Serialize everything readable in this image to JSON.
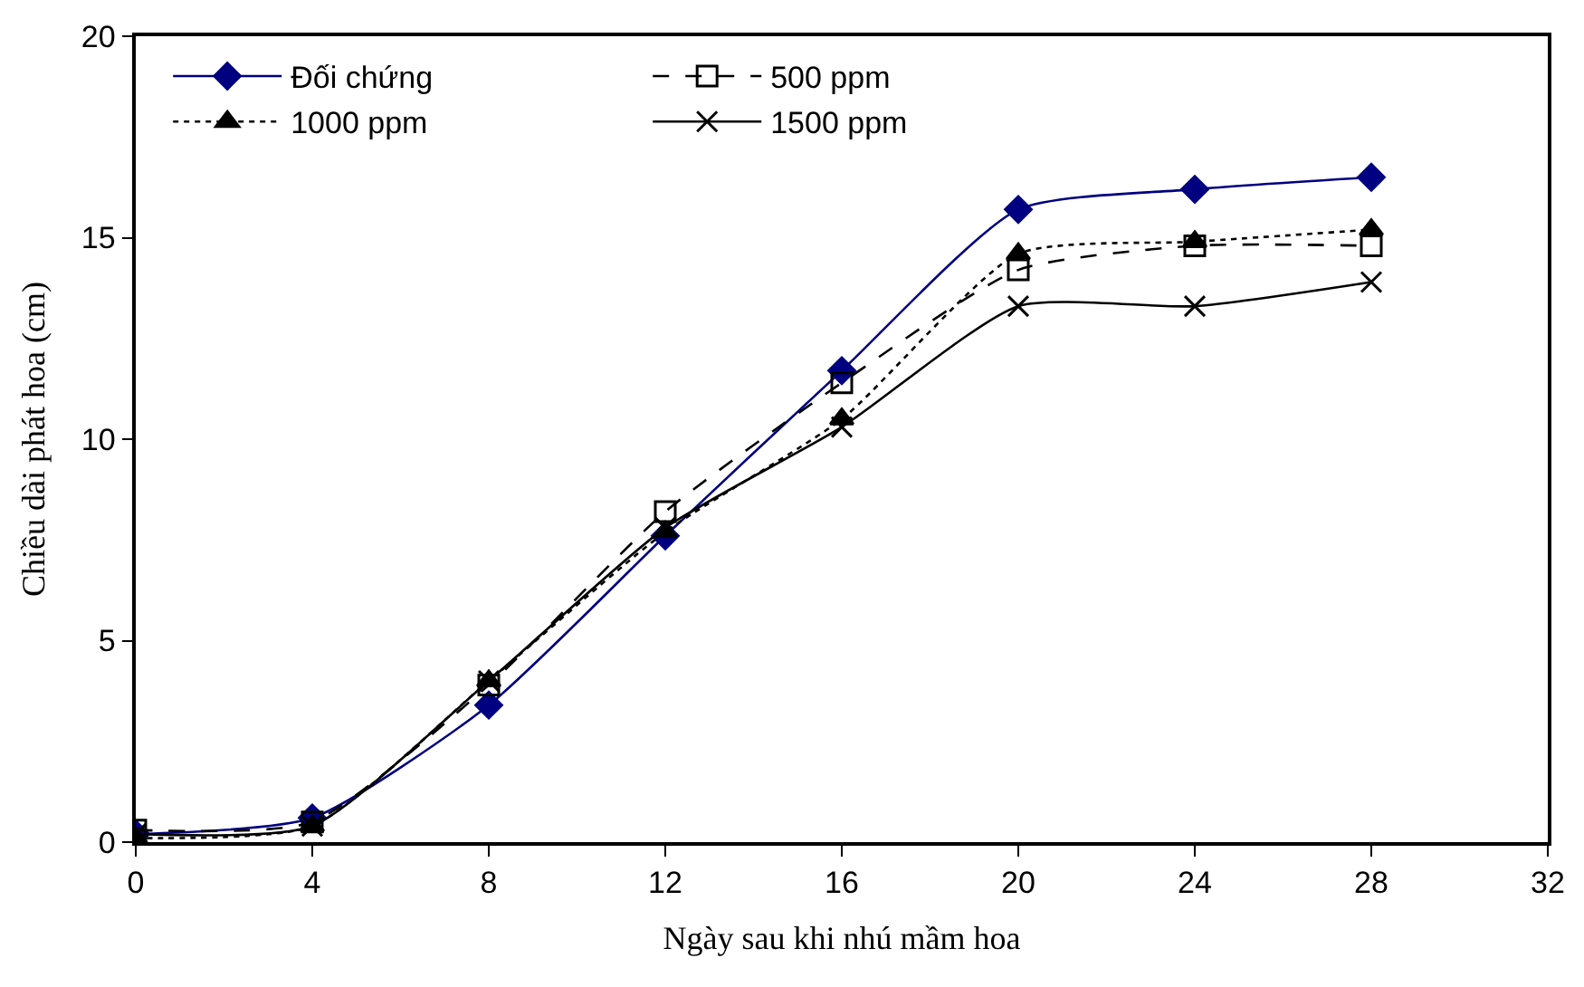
{
  "chart_data": {
    "type": "line",
    "xlabel": "Ngày sau khi nhú mầm hoa",
    "ylabel": "Chiều dài phát hoa (cm)",
    "x": [
      0,
      4,
      8,
      12,
      16,
      20,
      24,
      28
    ],
    "series": [
      {
        "name": "Đối chứng",
        "color": "#000080",
        "marker": "diamond",
        "line_style": "solid",
        "values": [
          0.2,
          0.6,
          3.4,
          7.6,
          11.7,
          15.7,
          16.2,
          16.5
        ]
      },
      {
        "name": "500 ppm",
        "color": "#000000",
        "marker": "square",
        "line_style": "dashed",
        "values": [
          0.3,
          0.5,
          3.9,
          8.2,
          11.4,
          14.2,
          14.8,
          14.8
        ]
      },
      {
        "name": "1000 ppm",
        "color": "#000000",
        "marker": "triangle",
        "line_style": "dotted",
        "values": [
          0.1,
          0.4,
          4.0,
          7.7,
          10.5,
          14.6,
          14.9,
          15.2
        ]
      },
      {
        "name": "1500 ppm",
        "color": "#000000",
        "marker": "cross",
        "line_style": "solid",
        "values": [
          0.2,
          0.4,
          4.0,
          7.8,
          10.3,
          13.3,
          13.3,
          13.9
        ]
      }
    ],
    "xlim": [
      0,
      32
    ],
    "xticks": [
      0,
      4,
      8,
      12,
      16,
      20,
      24,
      28,
      32
    ],
    "ylim": [
      0,
      20
    ],
    "yticks": [
      0,
      5,
      10,
      15,
      20
    ],
    "grid": false,
    "legend": "top left"
  }
}
